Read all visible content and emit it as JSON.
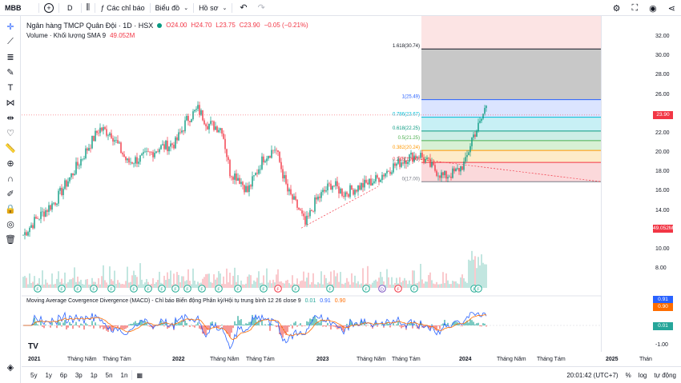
{
  "toolbar": {
    "symbol": "MBB",
    "interval": "D",
    "indicators_label": "Các chỉ báo",
    "chart_type_label": "Biểu đồ",
    "profile_label": "Hồ sơ"
  },
  "legend": {
    "title": "Ngân hàng TMCP Quân Đội · 1D · HSX",
    "open": "O24.00",
    "high": "H24.70",
    "low": "L23.75",
    "close": "C23.90",
    "change": "−0.05 (−0.21%)",
    "volume_label": "Volume · Khối lượng SMA 9",
    "volume_value": "49.052M"
  },
  "macd_legend": {
    "label": "Moving Average Covergence Divergence (MACD) - Chỉ báo Biến động Phân kỳ/Hội tụ trung bình 12 26 close 9",
    "v1": "0.01",
    "v2": "0.91",
    "v3": "0.90"
  },
  "price_scale": {
    "ticks": [
      "32.00",
      "30.00",
      "28.00",
      "26.00",
      "24.00",
      "22.00",
      "20.00",
      "18.00",
      "16.00",
      "14.00",
      "12.00",
      "10.00",
      "8.00"
    ],
    "current_price": "23.90",
    "volume_badge": "49.052M",
    "macd_ticks": [
      "1.00",
      "0.00",
      "-1.00"
    ],
    "macd_badges": [
      "0.91",
      "0.90",
      "0.01"
    ]
  },
  "fib_levels": [
    {
      "label": "1.618(30.74)",
      "value": 30.74,
      "color": "#131722"
    },
    {
      "label": "1(25.49)",
      "value": 25.49,
      "color": "#2962ff"
    },
    {
      "label": "0.786(23.67)",
      "value": 23.67,
      "color": "#00bcd4"
    },
    {
      "label": "0.618(22.25)",
      "value": 22.25,
      "color": "#089981"
    },
    {
      "label": "0.5(21.25)",
      "value": 21.25,
      "color": "#4caf50"
    },
    {
      "label": "0.382(20.24)",
      "value": 20.24,
      "color": "#ff9800"
    },
    {
      "label": "0.236(19.00)",
      "value": 19.0,
      "color": "#f23645"
    },
    {
      "label": "0(17.00)",
      "value": 17.0,
      "color": "#787b86"
    }
  ],
  "time_axis": [
    "2021",
    "Tháng Năm",
    "Tháng Tám",
    "2022",
    "Tháng Năm",
    "Tháng Tám",
    "2023",
    "Tháng Năm",
    "Tháng Tám",
    "2024",
    "Tháng Năm",
    "Tháng Tám",
    "2025",
    "Thán"
  ],
  "bottom": {
    "ranges": [
      "5y",
      "1y",
      "6p",
      "3p",
      "1p",
      "5n",
      "1n"
    ],
    "time": "20:01:42 (UTC+7)",
    "percent": "%",
    "log": "log",
    "auto": "tự động"
  },
  "colors": {
    "up": "#089981",
    "down": "#f23645",
    "current": "#f23645"
  }
}
